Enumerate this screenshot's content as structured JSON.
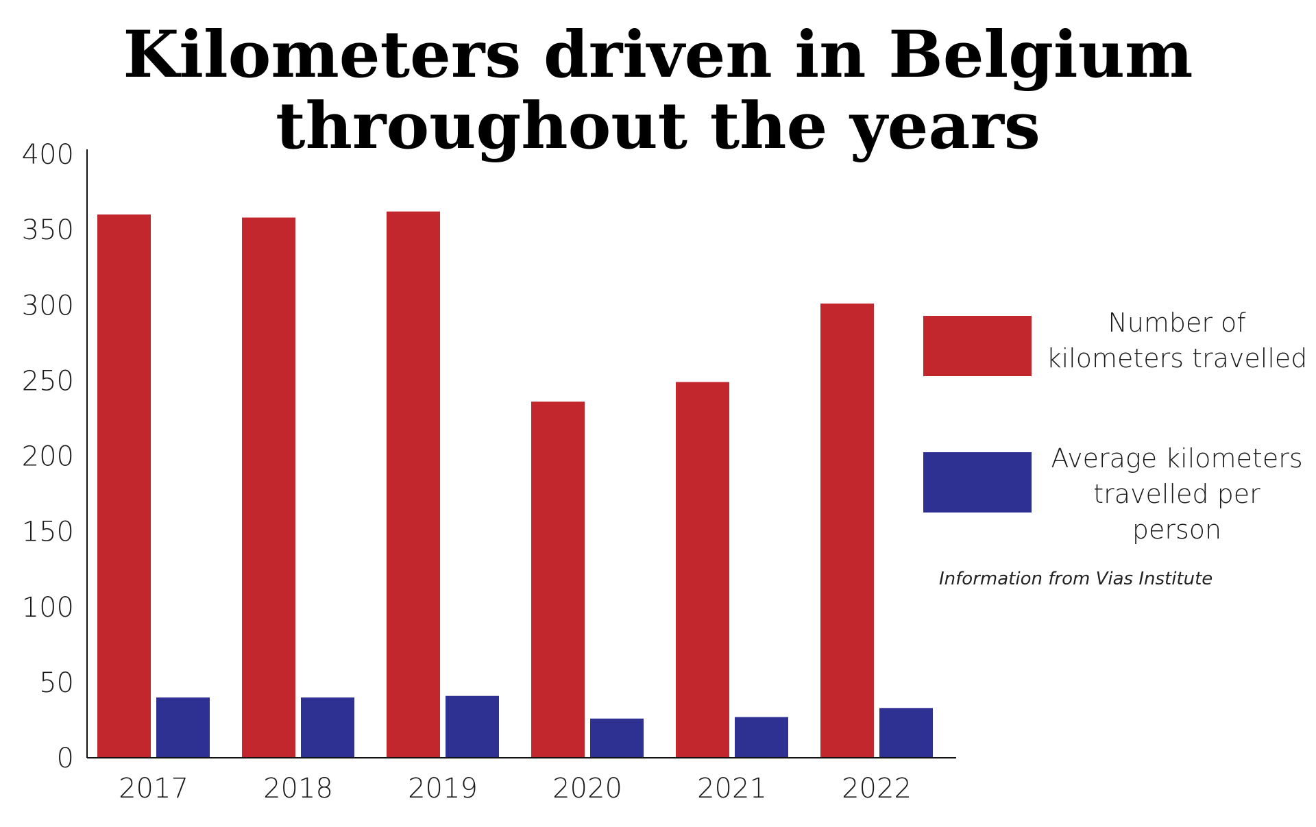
{
  "title": {
    "line1": "Kilometers driven in Belgium",
    "line2": "throughout the years"
  },
  "source_note": "Information from Vias Institute",
  "legend": [
    {
      "lines": [
        "Number of",
        "kilometers travelled"
      ],
      "color": "#c1272d"
    },
    {
      "lines": [
        "Average kilometers",
        "travelled per",
        "person"
      ],
      "color": "#2e3192"
    }
  ],
  "chart_data": {
    "type": "bar",
    "title": "Kilometers driven in Belgium throughout the years",
    "xlabel": "",
    "ylabel": "",
    "ylim": [
      0,
      400
    ],
    "yticks": [
      0,
      50,
      100,
      150,
      200,
      250,
      300,
      350,
      400
    ],
    "categories": [
      "2017",
      "2018",
      "2019",
      "2020",
      "2021",
      "2022"
    ],
    "grid": false,
    "legend_position": "right",
    "series": [
      {
        "name": "Number of kilometers travelled",
        "color": "#c1272d",
        "values": [
          360,
          358,
          362,
          236,
          249,
          301
        ]
      },
      {
        "name": "Average kilometers travelled per person",
        "color": "#2e3192",
        "values": [
          40,
          40,
          41,
          26,
          27,
          33
        ]
      }
    ]
  }
}
